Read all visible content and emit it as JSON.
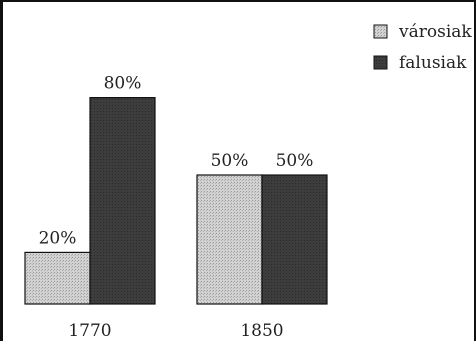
{
  "chart_data": {
    "type": "bar",
    "categories": [
      "1770",
      "1850"
    ],
    "series": [
      {
        "name": "városiak",
        "values": [
          20,
          50
        ],
        "labels": [
          "20%",
          "50%"
        ],
        "color": "#cfcfcf"
      },
      {
        "name": "falusiak",
        "values": [
          80,
          50
        ],
        "labels": [
          "80%",
          "50%"
        ],
        "color": "#3c3c3c"
      }
    ],
    "ylim": [
      0,
      100
    ],
    "grid": false,
    "legend_position": "top-right",
    "title": "",
    "xlabel": "",
    "ylabel": ""
  }
}
